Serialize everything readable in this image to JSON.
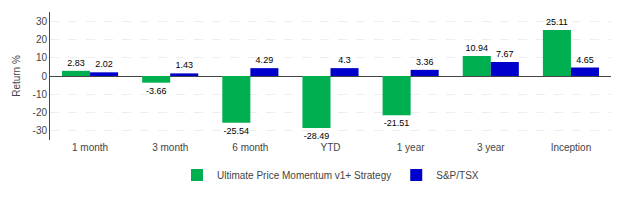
{
  "chart_data": {
    "type": "bar",
    "categories": [
      "1 month",
      "3 month",
      "6 month",
      "YTD",
      "1 year",
      "3 year",
      "Inception"
    ],
    "series": [
      {
        "name": "Ultimate Price Momentum v1+ Strategy",
        "color": "#00b050",
        "values": [
          2.83,
          -3.66,
          -25.54,
          -28.49,
          -21.51,
          10.94,
          25.11
        ]
      },
      {
        "name": "S&P/TSX",
        "color": "#0000cc",
        "values": [
          2.02,
          1.43,
          4.29,
          4.3,
          3.36,
          7.67,
          4.65
        ]
      }
    ],
    "ylabel": "Return %",
    "ylim": [
      -35,
      35
    ],
    "yticks": [
      -30,
      -20,
      -10,
      0,
      10,
      20,
      30
    ],
    "grid": true,
    "data_labels": true,
    "legend": "bottom"
  }
}
